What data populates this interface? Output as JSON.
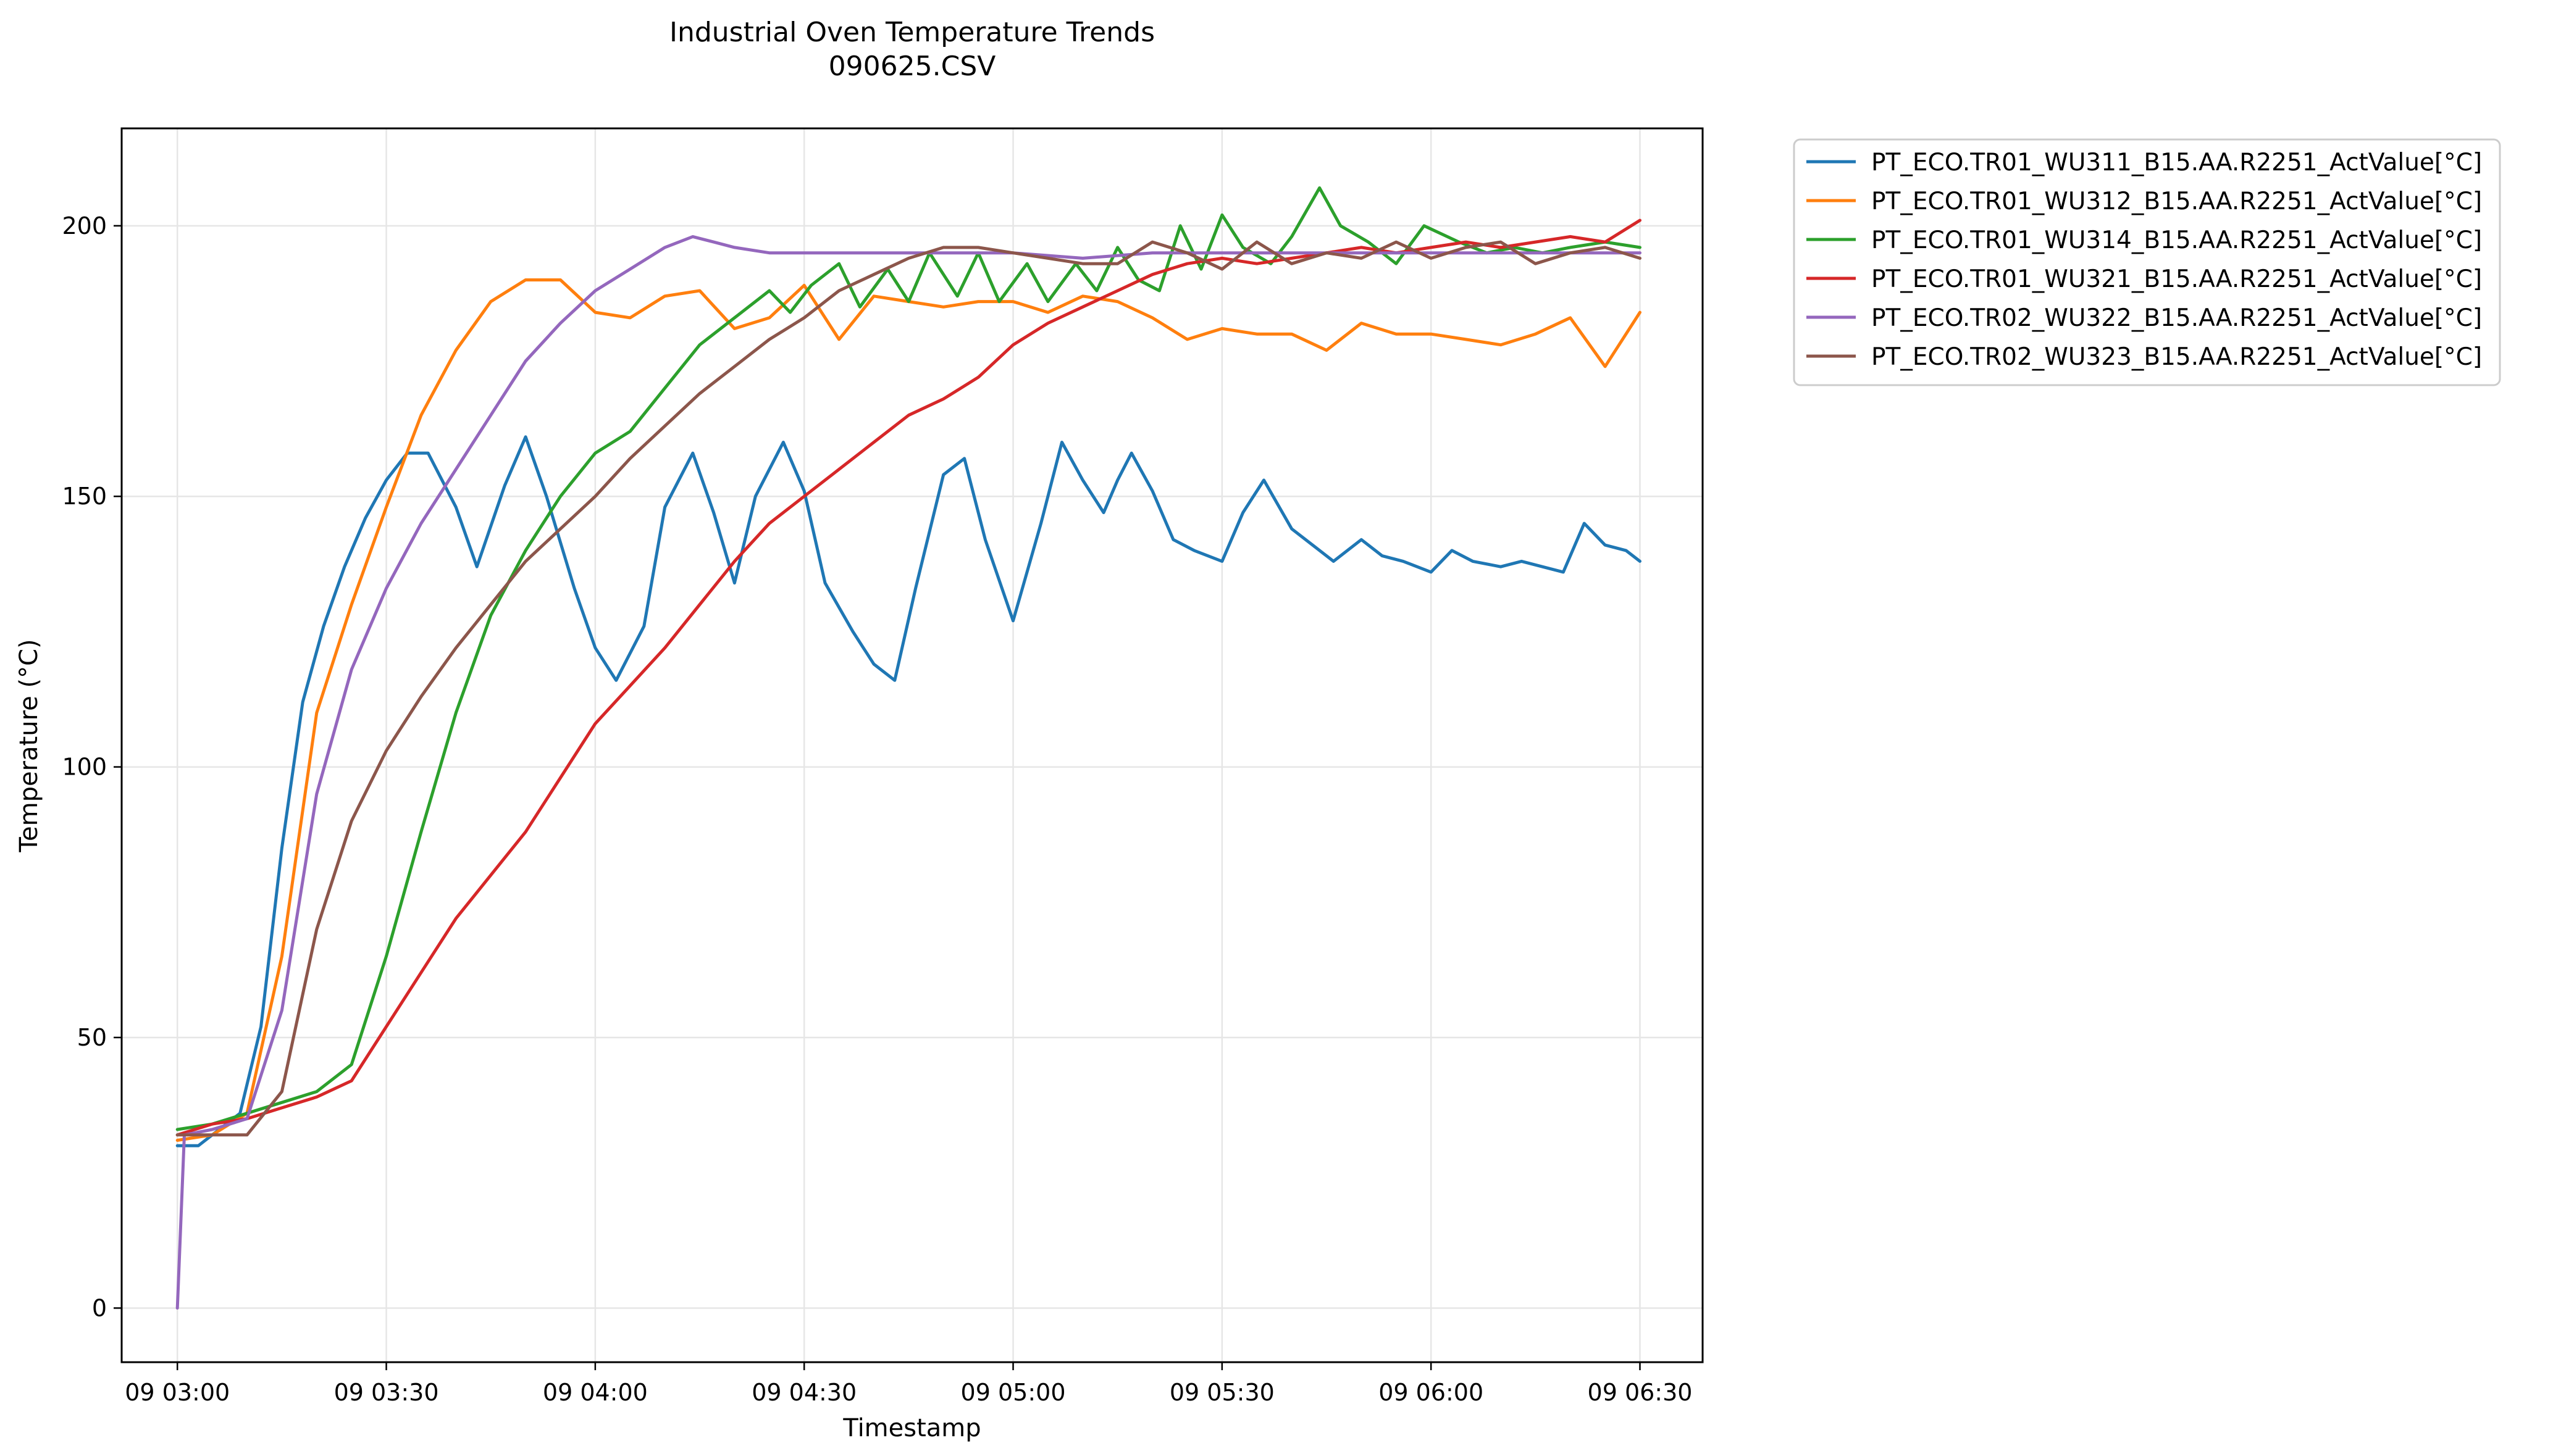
{
  "chart_data": {
    "type": "line",
    "title": "Industrial Oven Temperature Trends",
    "subtitle": "090625.CSV",
    "xlabel": "Timestamp",
    "ylabel": "Temperature (°C)",
    "x_axis": {
      "type": "time",
      "range": [
        "09 02:52",
        "09 06:39"
      ]
    },
    "ylim": [
      -10,
      218
    ],
    "x_ticks": [
      "09 03:00",
      "09 03:30",
      "09 04:00",
      "09 04:30",
      "09 05:00",
      "09 05:30",
      "09 06:00",
      "09 06:30"
    ],
    "y_ticks": [
      0,
      50,
      100,
      150,
      200
    ],
    "grid": true,
    "legend": "outside-right",
    "series": [
      {
        "name": "PT_ECO.TR01_WU311_B15.AA.R2251_ActValue[°C]",
        "color": "#1f77b4",
        "x": [
          "09 03:00",
          "09 03:03",
          "09 03:06",
          "09 03:09",
          "09 03:12",
          "09 03:15",
          "09 03:18",
          "09 03:21",
          "09 03:24",
          "09 03:27",
          "09 03:30",
          "09 03:33",
          "09 03:36",
          "09 03:40",
          "09 03:43",
          "09 03:47",
          "09 03:50",
          "09 03:53",
          "09 03:57",
          "09 04:00",
          "09 04:03",
          "09 04:07",
          "09 04:10",
          "09 04:14",
          "09 04:17",
          "09 04:20",
          "09 04:23",
          "09 04:27",
          "09 04:30",
          "09 04:33",
          "09 04:37",
          "09 04:40",
          "09 04:43",
          "09 04:46",
          "09 04:50",
          "09 04:53",
          "09 04:56",
          "09 05:00",
          "09 05:04",
          "09 05:07",
          "09 05:10",
          "09 05:13",
          "09 05:15",
          "09 05:17",
          "09 05:20",
          "09 05:23",
          "09 05:26",
          "09 05:30",
          "09 05:33",
          "09 05:36",
          "09 05:40",
          "09 05:43",
          "09 05:46",
          "09 05:50",
          "09 05:53",
          "09 05:56",
          "09 06:00",
          "09 06:03",
          "09 06:06",
          "09 06:10",
          "09 06:13",
          "09 06:16",
          "09 06:19",
          "09 06:22",
          "09 06:25",
          "09 06:28",
          "09 06:30"
        ],
        "y": [
          30,
          30,
          33,
          36,
          52,
          85,
          112,
          126,
          137,
          146,
          153,
          158,
          158,
          148,
          137,
          152,
          161,
          150,
          133,
          122,
          116,
          126,
          148,
          158,
          147,
          134,
          150,
          160,
          151,
          134,
          125,
          119,
          116,
          133,
          154,
          157,
          142,
          127,
          145,
          160,
          153,
          147,
          153,
          158,
          151,
          142,
          140,
          138,
          147,
          153,
          144,
          141,
          138,
          142,
          139,
          138,
          136,
          140,
          138,
          137,
          138,
          137,
          136,
          145,
          141,
          140,
          138
        ]
      },
      {
        "name": "PT_ECO.TR01_WU312_B15.AA.R2251_ActValue[°C]",
        "color": "#ff7f0e",
        "x": [
          "09 03:00",
          "09 03:05",
          "09 03:10",
          "09 03:15",
          "09 03:20",
          "09 03:25",
          "09 03:30",
          "09 03:35",
          "09 03:40",
          "09 03:45",
          "09 03:50",
          "09 03:55",
          "09 04:00",
          "09 04:05",
          "09 04:10",
          "09 04:15",
          "09 04:20",
          "09 04:25",
          "09 04:30",
          "09 04:35",
          "09 04:40",
          "09 04:45",
          "09 04:50",
          "09 04:55",
          "09 05:00",
          "09 05:05",
          "09 05:10",
          "09 05:15",
          "09 05:20",
          "09 05:25",
          "09 05:30",
          "09 05:35",
          "09 05:40",
          "09 05:45",
          "09 05:50",
          "09 05:55",
          "09 06:00",
          "09 06:05",
          "09 06:10",
          "09 06:15",
          "09 06:20",
          "09 06:25",
          "09 06:30"
        ],
        "y": [
          31,
          32,
          36,
          65,
          110,
          130,
          148,
          165,
          177,
          186,
          190,
          190,
          184,
          183,
          187,
          188,
          181,
          183,
          189,
          179,
          187,
          186,
          185,
          186,
          186,
          184,
          187,
          186,
          183,
          179,
          181,
          180,
          180,
          177,
          182,
          180,
          180,
          179,
          178,
          180,
          183,
          174,
          184
        ]
      },
      {
        "name": "PT_ECO.TR01_WU314_B15.AA.R2251_ActValue[°C]",
        "color": "#2ca02c",
        "x": [
          "09 03:00",
          "09 03:05",
          "09 03:10",
          "09 03:15",
          "09 03:20",
          "09 03:25",
          "09 03:30",
          "09 03:35",
          "09 03:40",
          "09 03:45",
          "09 03:50",
          "09 03:55",
          "09 04:00",
          "09 04:05",
          "09 04:10",
          "09 04:15",
          "09 04:20",
          "09 04:25",
          "09 04:28",
          "09 04:31",
          "09 04:35",
          "09 04:38",
          "09 04:42",
          "09 04:45",
          "09 04:48",
          "09 04:52",
          "09 04:55",
          "09 04:58",
          "09 05:02",
          "09 05:05",
          "09 05:09",
          "09 05:12",
          "09 05:15",
          "09 05:18",
          "09 05:21",
          "09 05:24",
          "09 05:27",
          "09 05:30",
          "09 05:33",
          "09 05:37",
          "09 05:40",
          "09 05:44",
          "09 05:47",
          "09 05:51",
          "09 05:55",
          "09 05:59",
          "09 06:04",
          "09 06:08",
          "09 06:12",
          "09 06:16",
          "09 06:20",
          "09 06:25",
          "09 06:30"
        ],
        "y": [
          33,
          34,
          36,
          38,
          40,
          45,
          65,
          88,
          110,
          128,
          140,
          150,
          158,
          162,
          170,
          178,
          183,
          188,
          184,
          189,
          193,
          185,
          192,
          186,
          195,
          187,
          195,
          186,
          193,
          186,
          193,
          188,
          196,
          190,
          188,
          200,
          192,
          202,
          196,
          193,
          198,
          207,
          200,
          197,
          193,
          200,
          197,
          195,
          196,
          195,
          196,
          197,
          196
        ]
      },
      {
        "name": "PT_ECO.TR01_WU321_B15.AA.R2251_ActValue[°C]",
        "color": "#d62728",
        "x": [
          "09 03:00",
          "09 03:05",
          "09 03:10",
          "09 03:15",
          "09 03:20",
          "09 03:25",
          "09 03:30",
          "09 03:35",
          "09 03:40",
          "09 03:45",
          "09 03:50",
          "09 03:55",
          "09 04:00",
          "09 04:05",
          "09 04:10",
          "09 04:15",
          "09 04:20",
          "09 04:25",
          "09 04:30",
          "09 04:35",
          "09 04:40",
          "09 04:45",
          "09 04:50",
          "09 04:55",
          "09 05:00",
          "09 05:05",
          "09 05:10",
          "09 05:15",
          "09 05:20",
          "09 05:25",
          "09 05:30",
          "09 05:35",
          "09 05:40",
          "09 05:45",
          "09 05:50",
          "09 05:55",
          "09 06:00",
          "09 06:05",
          "09 06:10",
          "09 06:15",
          "09 06:20",
          "09 06:25",
          "09 06:30"
        ],
        "y": [
          32,
          34,
          35,
          37,
          39,
          42,
          52,
          62,
          72,
          80,
          88,
          98,
          108,
          115,
          122,
          130,
          138,
          145,
          150,
          155,
          160,
          165,
          168,
          172,
          178,
          182,
          185,
          188,
          191,
          193,
          194,
          193,
          194,
          195,
          196,
          195,
          196,
          197,
          196,
          197,
          198,
          197,
          201
        ]
      },
      {
        "name": "PT_ECO.TR02_WU322_B15.AA.R2251_ActValue[°C]",
        "color": "#9467bd",
        "x": [
          "09 03:00",
          "09 03:01",
          "09 03:05",
          "09 03:10",
          "09 03:15",
          "09 03:20",
          "09 03:25",
          "09 03:30",
          "09 03:35",
          "09 03:40",
          "09 03:45",
          "09 03:50",
          "09 03:55",
          "09 04:00",
          "09 04:05",
          "09 04:10",
          "09 04:14",
          "09 04:17",
          "09 04:20",
          "09 04:25",
          "09 04:30",
          "09 04:40",
          "09 04:50",
          "09 05:00",
          "09 05:10",
          "09 05:20",
          "09 05:30",
          "09 05:40",
          "09 05:50",
          "09 06:00",
          "09 06:10",
          "09 06:20",
          "09 06:30"
        ],
        "y": [
          0,
          32,
          33,
          35,
          55,
          95,
          118,
          133,
          145,
          155,
          165,
          175,
          182,
          188,
          192,
          196,
          198,
          197,
          196,
          195,
          195,
          195,
          195,
          195,
          194,
          195,
          195,
          195,
          195,
          195,
          195,
          195,
          195
        ]
      },
      {
        "name": "PT_ECO.TR02_WU323_B15.AA.R2251_ActValue[°C]",
        "color": "#8c564b",
        "x": [
          "09 03:00",
          "09 03:05",
          "09 03:10",
          "09 03:15",
          "09 03:20",
          "09 03:25",
          "09 03:30",
          "09 03:35",
          "09 03:40",
          "09 03:45",
          "09 03:50",
          "09 03:55",
          "09 04:00",
          "09 04:05",
          "09 04:10",
          "09 04:15",
          "09 04:20",
          "09 04:25",
          "09 04:30",
          "09 04:35",
          "09 04:40",
          "09 04:45",
          "09 04:50",
          "09 04:55",
          "09 05:00",
          "09 05:05",
          "09 05:10",
          "09 05:15",
          "09 05:20",
          "09 05:25",
          "09 05:30",
          "09 05:35",
          "09 05:40",
          "09 05:45",
          "09 05:50",
          "09 05:55",
          "09 06:00",
          "09 06:05",
          "09 06:10",
          "09 06:15",
          "09 06:20",
          "09 06:25",
          "09 06:30"
        ],
        "y": [
          32,
          32,
          32,
          40,
          70,
          90,
          103,
          113,
          122,
          130,
          138,
          144,
          150,
          157,
          163,
          169,
          174,
          179,
          183,
          188,
          191,
          194,
          196,
          196,
          195,
          194,
          193,
          193,
          197,
          195,
          192,
          197,
          193,
          195,
          194,
          197,
          194,
          196,
          197,
          193,
          195,
          196,
          194
        ]
      }
    ]
  }
}
